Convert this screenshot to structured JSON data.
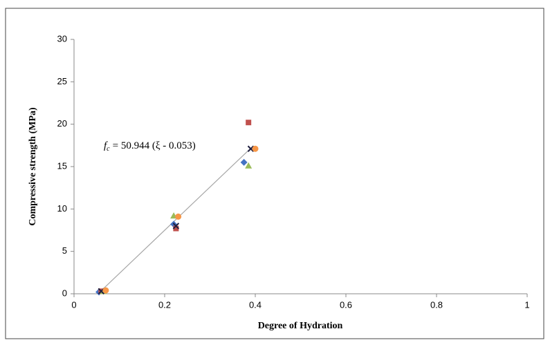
{
  "chart_data": {
    "type": "scatter",
    "xlabel": "Degree of Hydration",
    "ylabel": "Compressive strength  (MPa)",
    "xlim": [
      0,
      1
    ],
    "xticks": [
      0,
      0.2,
      0.4,
      0.6,
      0.8,
      1
    ],
    "ylim": [
      0,
      30
    ],
    "yticks": [
      0,
      5,
      10,
      15,
      20,
      25,
      30
    ],
    "grid": false,
    "annotation": {
      "symbol": "f",
      "subscript": "c",
      "text": "= 50.944 (ξ - 0.053)"
    },
    "trendline": {
      "color": "#a6a6a6",
      "x": [
        0.06,
        0.39
      ],
      "values": [
        0.36,
        17.17
      ]
    },
    "series": [
      {
        "marker": "diamond",
        "color": "#4472c4",
        "x": [
          0.055,
          0.22,
          0.375
        ],
        "values": [
          0.2,
          8.2,
          15.5
        ]
      },
      {
        "marker": "square",
        "color": "#c0504d",
        "x": [
          0.06,
          0.225,
          0.385
        ],
        "values": [
          0.3,
          7.7,
          20.2
        ]
      },
      {
        "marker": "triangle",
        "color": "#9bbb59",
        "x": [
          0.065,
          0.22,
          0.385
        ],
        "values": [
          0.3,
          9.2,
          15.1
        ]
      },
      {
        "marker": "x",
        "color": "#1f1f3f",
        "x": [
          0.06,
          0.225,
          0.39
        ],
        "values": [
          0.3,
          8.0,
          17.1
        ]
      },
      {
        "marker": "circle",
        "color": "#f79646",
        "x": [
          0.07,
          0.23,
          0.4
        ],
        "values": [
          0.4,
          9.1,
          17.1
        ]
      }
    ]
  }
}
